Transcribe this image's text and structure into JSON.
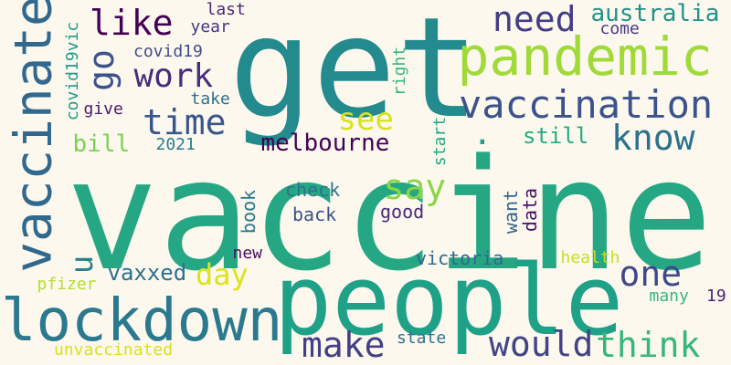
{
  "background": "#fcf8ee",
  "words": [
    {
      "text": "vaccine",
      "color": "#26a784"
    },
    {
      "text": "get",
      "color": "#238a8d"
    },
    {
      "text": "people",
      "color": "#1fa187"
    },
    {
      "text": "lockdown",
      "color": "#2b798e"
    },
    {
      "text": "pandemic",
      "color": "#a0da39"
    },
    {
      "text": "vaccinate",
      "color": "#31688e"
    },
    {
      "text": "vaccination",
      "color": "#3b528b"
    },
    {
      "text": "need",
      "color": "#433e85"
    },
    {
      "text": "think",
      "color": "#35b779"
    },
    {
      "text": "would",
      "color": "#414487"
    },
    {
      "text": "make",
      "color": "#424086"
    },
    {
      "text": "one",
      "color": "#3e4989"
    },
    {
      "text": "know",
      "color": "#2c728e"
    },
    {
      "text": "go",
      "color": "#3b528b"
    },
    {
      "text": "like",
      "color": "#440154"
    },
    {
      "text": "time",
      "color": "#39568c"
    },
    {
      "text": "work",
      "color": "#472d7b"
    },
    {
      "text": "say",
      "color": "#8bd646"
    },
    {
      "text": "see",
      "color": "#d8e219"
    },
    {
      "text": "day",
      "color": "#dde318"
    },
    {
      "text": "australia",
      "color": "#21918c"
    },
    {
      "text": "melbourne",
      "color": "#440154"
    },
    {
      "text": "u",
      "color": "#26828e"
    },
    {
      "text": ".",
      "color": "#1fa187"
    },
    {
      "text": "vaxxed",
      "color": "#2d708e"
    },
    {
      "text": "bill",
      "color": "#7ad151"
    },
    {
      "text": "still",
      "color": "#25ab82"
    },
    {
      "text": "covid19",
      "color": "#3e4c8a"
    },
    {
      "text": "check",
      "color": "#2c718e"
    },
    {
      "text": "back",
      "color": "#3b528b"
    },
    {
      "text": "victoria",
      "color": "#30678d"
    },
    {
      "text": "book",
      "color": "#2a788e"
    },
    {
      "text": "good",
      "color": "#482878"
    },
    {
      "text": "want",
      "color": "#33638d"
    },
    {
      "text": "data",
      "color": "#471164"
    },
    {
      "text": "covid19vic",
      "color": "#1f998a"
    },
    {
      "text": "come",
      "color": "#443a83"
    },
    {
      "text": "year",
      "color": "#453781"
    },
    {
      "text": "last",
      "color": "#482575"
    },
    {
      "text": "right",
      "color": "#35b779"
    },
    {
      "text": "start",
      "color": "#22a884"
    },
    {
      "text": "take",
      "color": "#2e6e8e"
    },
    {
      "text": "give",
      "color": "#481b6d"
    },
    {
      "text": "2021",
      "color": "#297b8e"
    },
    {
      "text": "new",
      "color": "#471063"
    },
    {
      "text": "pfizer",
      "color": "#b5de2b"
    },
    {
      "text": "health",
      "color": "#c2df23"
    },
    {
      "text": "many",
      "color": "#35b779"
    },
    {
      "text": "19",
      "color": "#482173"
    },
    {
      "text": "state",
      "color": "#2d708e"
    },
    {
      "text": "unvaccinated",
      "color": "#d8e219"
    }
  ]
}
